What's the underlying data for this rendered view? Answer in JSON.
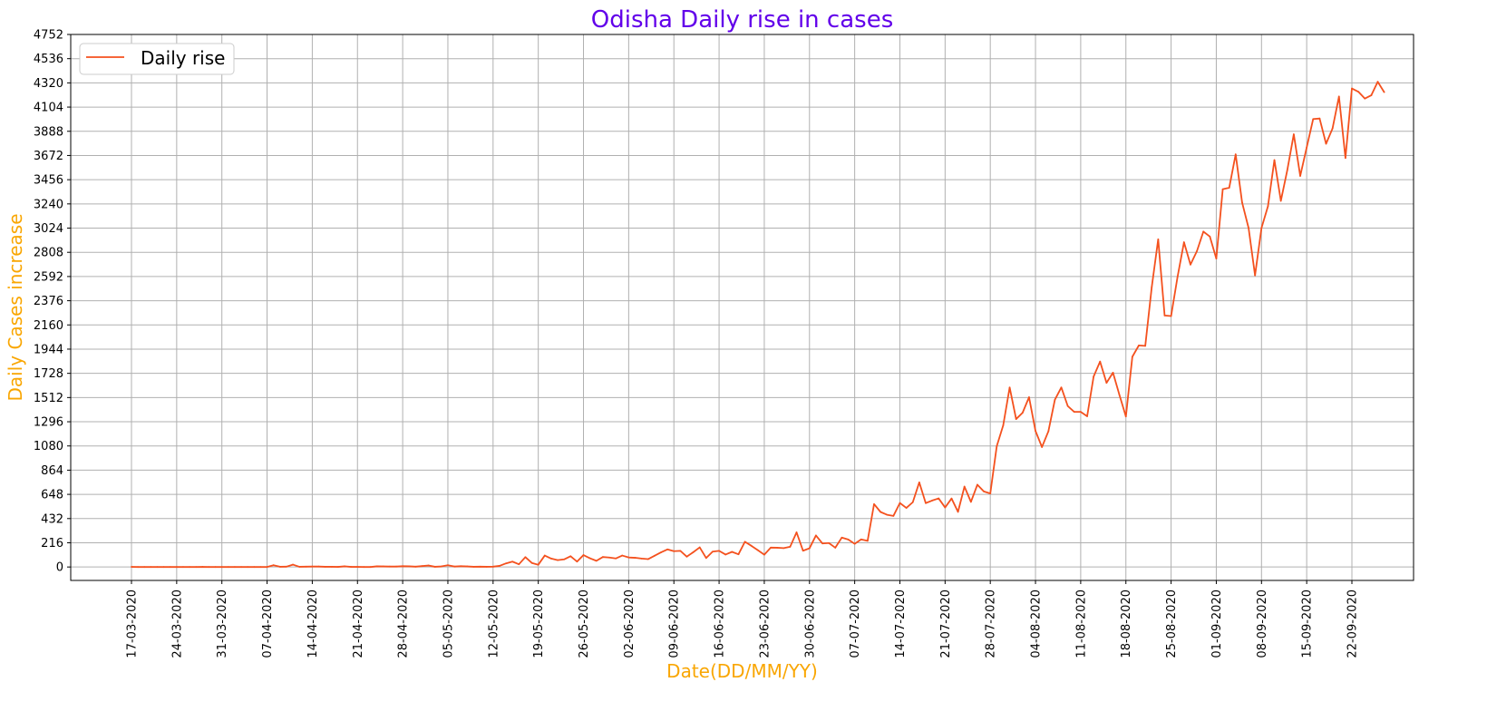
{
  "chart_data": {
    "type": "line",
    "title": "Odisha Daily rise in cases",
    "xlabel": "Date(DD/MM/YY)",
    "ylabel": "Daily Cases increase",
    "ylim": [
      -120,
      4752
    ],
    "yticks": [
      0,
      216,
      432,
      648,
      864,
      1080,
      1296,
      1512,
      1728,
      1944,
      2160,
      2376,
      2592,
      2808,
      3024,
      3240,
      3456,
      3672,
      3888,
      4104,
      4320,
      4536,
      4752
    ],
    "xticks": [
      "17-03-2020",
      "24-03-2020",
      "31-03-2020",
      "07-04-2020",
      "14-04-2020",
      "21-04-2020",
      "28-04-2020",
      "05-05-2020",
      "12-05-2020",
      "19-05-2020",
      "26-05-2020",
      "02-06-2020",
      "09-06-2020",
      "16-06-2020",
      "23-06-2020",
      "30-06-2020",
      "07-07-2020",
      "14-07-2020",
      "21-07-2020",
      "28-07-2020",
      "04-08-2020",
      "11-08-2020",
      "18-08-2020",
      "25-08-2020",
      "01-09-2020",
      "08-09-2020",
      "15-09-2020",
      "22-09-2020"
    ],
    "grid": true,
    "legend_position": "top-left",
    "series": [
      {
        "name": "Daily rise",
        "color": "#f4511e",
        "x_start": "17-03-2020",
        "x_step": "1 day",
        "values": [
          1,
          0,
          0,
          0,
          0,
          0,
          0,
          0,
          0,
          0,
          0,
          1,
          0,
          0,
          0,
          0,
          0,
          0,
          0,
          0,
          0,
          0,
          16,
          2,
          3,
          21,
          2,
          3,
          4,
          4,
          2,
          2,
          1,
          6,
          1,
          1,
          0,
          0,
          6,
          5,
          4,
          4,
          7,
          6,
          3,
          8,
          13,
          2,
          5,
          16,
          4,
          7,
          5,
          2,
          3,
          2,
          3,
          10,
          32,
          48,
          24,
          88,
          36,
          20,
          102,
          75,
          61,
          68,
          96,
          48,
          106,
          78,
          55,
          89,
          84,
          76,
          102,
          85,
          82,
          75,
          70,
          100,
          130,
          157,
          141,
          144,
          92,
          132,
          175,
          80,
          137,
          144,
          111,
          135,
          113,
          225,
          189,
          150,
          110,
          173,
          172,
          168,
          180,
          309,
          145,
          167,
          281,
          210,
          214,
          172,
          262,
          245,
          207,
          246,
          233,
          561,
          491,
          466,
          456,
          571,
          527,
          578,
          755,
          570,
          593,
          612,
          531,
          611,
          492,
          717,
          581,
          734,
          674,
          656,
          1078,
          1264,
          1602,
          1320,
          1376,
          1515,
          1214,
          1070,
          1211,
          1492,
          1602,
          1436,
          1384,
          1384,
          1345,
          1699,
          1833,
          1643,
          1734,
          1535,
          1343,
          1876,
          1977,
          1973,
          2496,
          2924,
          2244,
          2239,
          2589,
          2898,
          2698,
          2819,
          2993,
          2949,
          2752,
          3371,
          3384,
          3682,
          3252,
          3025,
          2602,
          3025,
          3219,
          3631,
          3267,
          3543,
          3861,
          3490,
          3744,
          3997,
          4002,
          3777,
          3913,
          4198,
          3650,
          4270,
          4241,
          4180,
          4209,
          4330,
          4237
        ]
      }
    ]
  }
}
